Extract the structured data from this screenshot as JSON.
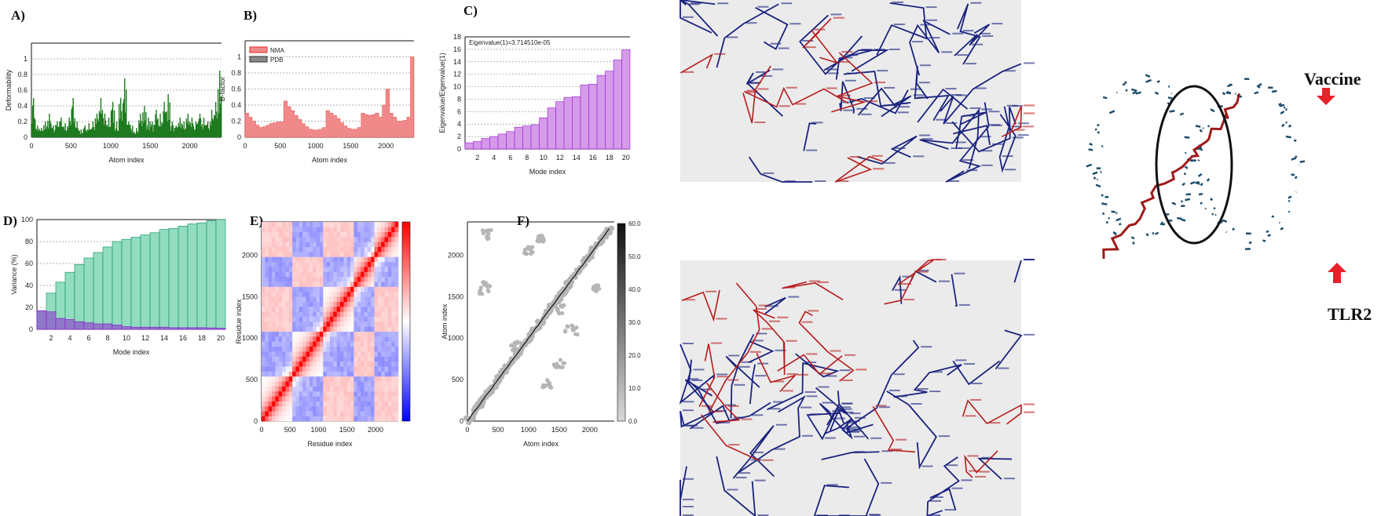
{
  "panels": {
    "a": "A)",
    "b": "B)",
    "c": "C)",
    "d": "D)",
    "e": "E)",
    "f": "F)"
  },
  "annotations": {
    "vaccine": "Vaccine",
    "tlr2": "TLR2"
  },
  "colors": {
    "deformability": "#1f7a1f",
    "bfactor": "#f08a8a",
    "eigen": "#d59ae8",
    "eigen_edge": "#9a1fd6",
    "cumulative": "#92dcc0",
    "cumulative_edge": "#1a9a6a",
    "individual": "#8f78c8",
    "vaccine_chain": "#9e1a1a",
    "tlr2_chain": "#1e4e6e",
    "arrow": "#e8202a"
  },
  "chart_data": [
    {
      "panel": "A",
      "type": "bar",
      "xlabel": "Atom index",
      "ylabel": "Deformability",
      "xlim": [
        0,
        2400
      ],
      "ylim": [
        0,
        1.2
      ],
      "xticks": [
        "0",
        "500",
        "1000",
        "1500",
        "2000"
      ],
      "yticks": [
        "0",
        "0.2",
        "0.4",
        "0.6",
        "0.8",
        "1"
      ],
      "grid": true,
      "x_step": 50,
      "values": [
        0.5,
        0.15,
        0.12,
        0.2,
        0.3,
        0.15,
        0.2,
        0.25,
        0.18,
        0.25,
        0.5,
        0.2,
        0.1,
        0.15,
        0.18,
        0.2,
        0.3,
        0.5,
        0.3,
        0.25,
        0.45,
        0.2,
        0.5,
        0.75,
        0.2,
        0.15,
        0.12,
        0.3,
        0.4,
        0.25,
        0.2,
        0.35,
        0.3,
        0.45,
        0.55,
        0.2,
        0.15,
        0.25,
        0.2,
        0.3,
        0.25,
        0.2,
        0.3,
        0.25,
        0.2,
        0.35,
        0.45,
        0.85
      ]
    },
    {
      "panel": "B",
      "type": "area",
      "xlabel": "Atom index",
      "ylabel": "B-factor",
      "xlim": [
        0,
        2400
      ],
      "ylim": [
        0,
        1.2
      ],
      "xticks": [
        "0",
        "500",
        "1000",
        "1500",
        "2000"
      ],
      "yticks": [
        "0",
        "0.2",
        "0.4",
        "0.6",
        "0.8",
        "1"
      ],
      "grid": true,
      "legend": "top-left",
      "series": [
        {
          "name": "NMA",
          "x_step": 50,
          "values": [
            0.3,
            0.25,
            0.2,
            0.15,
            0.12,
            0.13,
            0.15,
            0.17,
            0.18,
            0.19,
            0.19,
            0.45,
            0.38,
            0.33,
            0.27,
            0.22,
            0.17,
            0.13,
            0.1,
            0.09,
            0.09,
            0.1,
            0.12,
            0.33,
            0.3,
            0.27,
            0.23,
            0.18,
            0.14,
            0.11,
            0.1,
            0.1,
            0.12,
            0.3,
            0.28,
            0.27,
            0.28,
            0.3,
            0.25,
            0.4,
            0.6,
            0.3,
            0.25,
            0.2,
            0.2,
            0.21,
            0.25,
            1.0
          ]
        },
        {
          "name": "PDB",
          "values": []
        }
      ]
    },
    {
      "panel": "C",
      "type": "bar",
      "xlabel": "Mode index",
      "ylabel": "Eigenvalue/Eigenvalue(1)",
      "annotation": "Eigenvalue(1)=3.714510e-05",
      "xlim": [
        0.5,
        20.5
      ],
      "ylim": [
        0,
        18
      ],
      "xticks": [
        "2",
        "4",
        "6",
        "8",
        "10",
        "12",
        "14",
        "16",
        "18",
        "20"
      ],
      "yticks": [
        "0",
        "2",
        "4",
        "6",
        "8",
        "10",
        "12",
        "14",
        "16",
        "18"
      ],
      "grid": true,
      "categories": [
        1,
        2,
        3,
        4,
        5,
        6,
        7,
        8,
        9,
        10,
        11,
        12,
        13,
        14,
        15,
        16,
        17,
        18,
        19,
        20
      ],
      "values": [
        1.0,
        1.2,
        1.7,
        2.0,
        2.4,
        2.8,
        3.5,
        3.7,
        3.9,
        5.0,
        6.6,
        7.6,
        8.3,
        8.4,
        10.3,
        10.4,
        11.8,
        12.5,
        14.3,
        15.9
      ]
    },
    {
      "panel": "D",
      "type": "bar",
      "xlabel": "Mode index",
      "ylabel": "Variance (%)",
      "xlim": [
        0.5,
        20.5
      ],
      "ylim": [
        0,
        100
      ],
      "xticks": [
        "2",
        "4",
        "6",
        "8",
        "10",
        "12",
        "14",
        "16",
        "18",
        "20"
      ],
      "yticks": [
        "0",
        "20",
        "40",
        "60",
        "80",
        "100"
      ],
      "grid": true,
      "categories": [
        1,
        2,
        3,
        4,
        5,
        6,
        7,
        8,
        9,
        10,
        11,
        12,
        13,
        14,
        15,
        16,
        17,
        18,
        19,
        20
      ],
      "series": [
        {
          "values": [
            17,
            33,
            43,
            52,
            59,
            65,
            70,
            75,
            80,
            82,
            84,
            86,
            88,
            91,
            92,
            94,
            96,
            97,
            99,
            100
          ]
        },
        {
          "values": [
            17,
            16,
            10,
            9,
            7,
            6,
            5,
            5,
            4,
            2.5,
            2,
            2,
            2,
            2,
            1.5,
            1.5,
            1.5,
            1.5,
            1.3,
            1
          ]
        }
      ]
    },
    {
      "panel": "E",
      "type": "heatmap",
      "xlabel": "Residue index",
      "ylabel": "Residue index",
      "xlim": [
        0,
        2400
      ],
      "ylim": [
        0,
        2400
      ],
      "xticks": [
        "0",
        "500",
        "1000",
        "1500",
        "2000"
      ],
      "yticks": [
        "0",
        "500",
        "1000",
        "1500",
        "2000"
      ],
      "colorscale": [
        "#0000ff",
        "#ffffff",
        "#ff0000"
      ]
    },
    {
      "panel": "F",
      "type": "heatmap",
      "xlabel": "Atom index",
      "ylabel": "Atom index",
      "xlim": [
        0,
        2400
      ],
      "ylim": [
        0,
        2400
      ],
      "xticks": [
        "0",
        "500",
        "1000",
        "1500",
        "2000"
      ],
      "yticks": [
        "0",
        "500",
        "1000",
        "1500",
        "2000"
      ],
      "colorbar_ticks": [
        "0.0",
        "10.0",
        "20.0",
        "30.0",
        "40.0",
        "50.0",
        "60.0"
      ]
    }
  ]
}
